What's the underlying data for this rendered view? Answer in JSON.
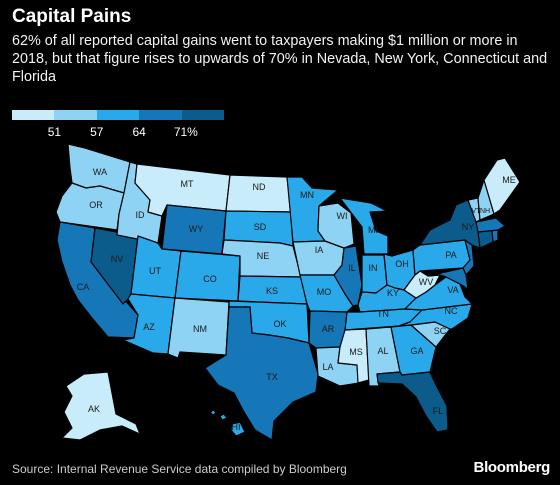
{
  "title": "Capital Pains",
  "subtitle": "62% of all reported capital gains went to taxpayers making $1 million or more in 2018, but that figure rises to upwards of 70% in Nevada, New York, Connecticut and Florida",
  "legend": {
    "colors": [
      "#c9ecfb",
      "#8fd3f4",
      "#29a9ea",
      "#1677b8",
      "#0b5b8b"
    ],
    "ticks": [
      "51",
      "57",
      "64",
      "71%"
    ]
  },
  "source": "Source: Internal Revenue Service data compiled by Bloomberg",
  "brand": "Bloomberg",
  "states": [
    {
      "code": "WA",
      "level": 1
    },
    {
      "code": "OR",
      "level": 1
    },
    {
      "code": "CA",
      "level": 3
    },
    {
      "code": "NV",
      "level": 4
    },
    {
      "code": "ID",
      "level": 1
    },
    {
      "code": "MT",
      "level": 0
    },
    {
      "code": "WY",
      "level": 3
    },
    {
      "code": "UT",
      "level": 2
    },
    {
      "code": "AZ",
      "level": 2
    },
    {
      "code": "CO",
      "level": 2
    },
    {
      "code": "NM",
      "level": 1
    },
    {
      "code": "ND",
      "level": 0
    },
    {
      "code": "SD",
      "level": 2
    },
    {
      "code": "NE",
      "level": 1
    },
    {
      "code": "KS",
      "level": 2
    },
    {
      "code": "OK",
      "level": 2
    },
    {
      "code": "TX",
      "level": 3
    },
    {
      "code": "MN",
      "level": 2
    },
    {
      "code": "IA",
      "level": 1
    },
    {
      "code": "MO",
      "level": 2
    },
    {
      "code": "AR",
      "level": 3
    },
    {
      "code": "LA",
      "level": 1
    },
    {
      "code": "WI",
      "level": 1
    },
    {
      "code": "IL",
      "level": 3
    },
    {
      "code": "MI",
      "level": 2
    },
    {
      "code": "IN",
      "level": 2
    },
    {
      "code": "OH",
      "level": 2
    },
    {
      "code": "KY",
      "level": 2
    },
    {
      "code": "TN",
      "level": 2
    },
    {
      "code": "MS",
      "level": 0
    },
    {
      "code": "AL",
      "level": 1
    },
    {
      "code": "GA",
      "level": 2
    },
    {
      "code": "FL",
      "level": 4
    },
    {
      "code": "SC",
      "level": 1
    },
    {
      "code": "NC",
      "level": 2
    },
    {
      "code": "VA",
      "level": 2
    },
    {
      "code": "WV",
      "level": 0
    },
    {
      "code": "PA",
      "level": 2
    },
    {
      "code": "NY",
      "level": 4
    },
    {
      "code": "ME",
      "level": 0
    },
    {
      "code": "VT",
      "level": 1
    },
    {
      "code": "NH",
      "level": 1
    },
    {
      "code": "AK",
      "level": 0
    },
    {
      "code": "HI",
      "level": 2
    }
  ]
}
